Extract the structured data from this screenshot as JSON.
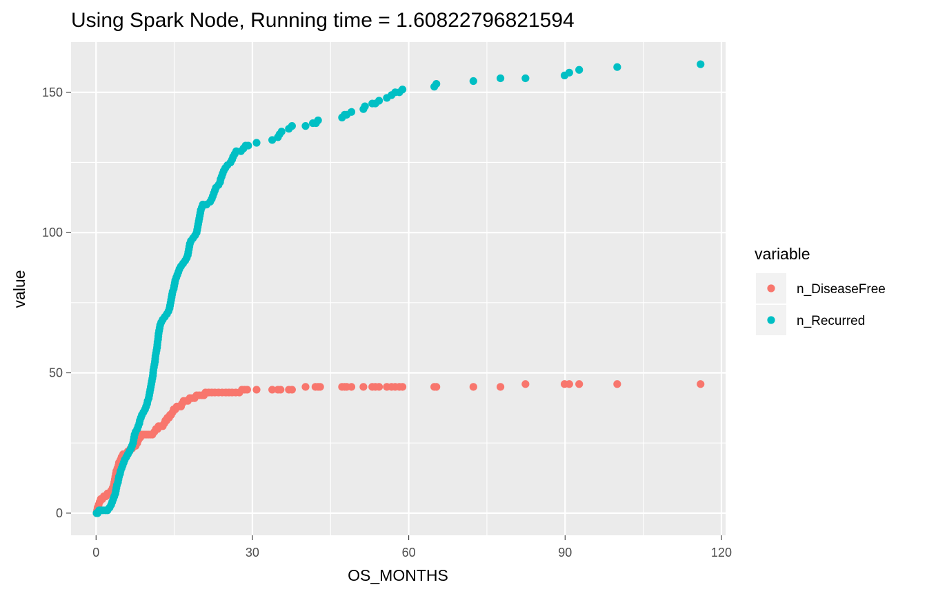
{
  "chart_data": {
    "type": "scatter",
    "title": "Using Spark Node, Running time =  1.60822796821594",
    "xlabel": "OS_MONTHS",
    "ylabel": "value",
    "xlim": [
      -4.8,
      120.8
    ],
    "ylim": [
      -7.9,
      167.9
    ],
    "x_ticks": [
      0,
      30,
      60,
      90,
      120
    ],
    "x_tick_labels": [
      "0",
      "30",
      "60",
      "90",
      "120"
    ],
    "y_ticks": [
      0,
      50,
      100,
      150
    ],
    "y_tick_labels": [
      "0",
      "50",
      "100",
      "150"
    ],
    "grid": true,
    "legend": {
      "title": "variable",
      "position": "right",
      "entries": [
        "n_DiseaseFree",
        "n_Recurred"
      ]
    },
    "series": [
      {
        "name": "n_DiseaseFree",
        "color": "#F8766D",
        "points": [
          [
            0.1,
            0
          ],
          [
            0.2,
            1
          ],
          [
            0.3,
            2
          ],
          [
            0.5,
            3
          ],
          [
            0.7,
            4
          ],
          [
            0.9,
            5
          ],
          [
            1.2,
            5
          ],
          [
            1.5,
            6
          ],
          [
            1.9,
            6
          ],
          [
            2.2,
            7
          ],
          [
            2.6,
            7
          ],
          [
            2.9,
            8
          ],
          [
            3.2,
            9
          ],
          [
            3.4,
            10
          ],
          [
            3.5,
            11
          ],
          [
            3.6,
            12
          ],
          [
            3.7,
            13
          ],
          [
            3.8,
            14
          ],
          [
            3.9,
            15
          ],
          [
            4.0,
            15
          ],
          [
            4.1,
            16
          ],
          [
            4.2,
            16
          ],
          [
            4.3,
            17
          ],
          [
            4.4,
            18
          ],
          [
            4.6,
            18
          ],
          [
            4.7,
            19
          ],
          [
            4.8,
            19
          ],
          [
            4.9,
            20
          ],
          [
            5.1,
            20
          ],
          [
            5.2,
            21
          ],
          [
            5.6,
            21
          ],
          [
            6.0,
            21
          ],
          [
            6.1,
            22
          ],
          [
            6.4,
            22
          ],
          [
            6.6,
            23
          ],
          [
            6.9,
            23
          ],
          [
            7.2,
            24
          ],
          [
            7.6,
            24
          ],
          [
            7.9,
            25
          ],
          [
            8.1,
            26
          ],
          [
            8.3,
            27
          ],
          [
            8.5,
            27
          ],
          [
            8.8,
            28
          ],
          [
            9.2,
            28
          ],
          [
            9.6,
            28
          ],
          [
            10.0,
            28
          ],
          [
            10.4,
            28
          ],
          [
            10.8,
            28
          ],
          [
            11.2,
            29
          ],
          [
            11.5,
            30
          ],
          [
            11.8,
            30
          ],
          [
            12.0,
            31
          ],
          [
            12.4,
            31
          ],
          [
            12.8,
            31
          ],
          [
            13.1,
            32
          ],
          [
            13.3,
            33
          ],
          [
            13.5,
            33
          ],
          [
            13.7,
            34
          ],
          [
            14.0,
            34
          ],
          [
            14.2,
            35
          ],
          [
            14.4,
            35
          ],
          [
            14.7,
            36
          ],
          [
            14.9,
            37
          ],
          [
            15.2,
            37
          ],
          [
            15.5,
            38
          ],
          [
            15.9,
            38
          ],
          [
            16.3,
            38
          ],
          [
            16.5,
            39
          ],
          [
            16.8,
            40
          ],
          [
            17.2,
            40
          ],
          [
            17.6,
            40
          ],
          [
            18.0,
            41
          ],
          [
            18.5,
            41
          ],
          [
            18.9,
            41
          ],
          [
            19.3,
            42
          ],
          [
            19.8,
            42
          ],
          [
            20.3,
            42
          ],
          [
            20.7,
            42
          ],
          [
            21.0,
            43
          ],
          [
            21.6,
            43
          ],
          [
            22.2,
            43
          ],
          [
            22.8,
            43
          ],
          [
            23.5,
            43
          ],
          [
            24.2,
            43
          ],
          [
            24.9,
            43
          ],
          [
            25.5,
            43
          ],
          [
            26.1,
            43
          ],
          [
            26.8,
            43
          ],
          [
            27.5,
            43
          ],
          [
            28.0,
            44
          ],
          [
            28.5,
            44
          ],
          [
            29.0,
            44
          ],
          [
            30.8,
            44
          ],
          [
            33.8,
            44
          ],
          [
            34.9,
            44
          ],
          [
            35.4,
            44
          ],
          [
            37.0,
            44
          ],
          [
            37.6,
            44
          ],
          [
            40.2,
            45
          ],
          [
            42.1,
            45
          ],
          [
            42.6,
            45
          ],
          [
            43.0,
            45
          ],
          [
            47.2,
            45
          ],
          [
            47.7,
            45
          ],
          [
            48.1,
            45
          ],
          [
            49.0,
            45
          ],
          [
            51.3,
            45
          ],
          [
            53.0,
            45
          ],
          [
            53.6,
            45
          ],
          [
            54.3,
            45
          ],
          [
            55.8,
            45
          ],
          [
            56.7,
            45
          ],
          [
            57.4,
            45
          ],
          [
            58.2,
            45
          ],
          [
            58.8,
            45
          ],
          [
            64.9,
            45
          ],
          [
            65.3,
            45
          ],
          [
            72.4,
            45
          ],
          [
            77.6,
            45
          ],
          [
            82.4,
            46
          ],
          [
            89.9,
            46
          ],
          [
            90.8,
            46
          ],
          [
            92.7,
            46
          ],
          [
            100.0,
            46
          ],
          [
            116.0,
            46
          ]
        ]
      },
      {
        "name": "n_Recurred",
        "color": "#00BFC4",
        "points": [
          [
            0.1,
            0
          ],
          [
            0.3,
            0
          ],
          [
            0.6,
            1
          ],
          [
            0.9,
            1
          ],
          [
            1.3,
            1
          ],
          [
            1.8,
            1
          ],
          [
            2.2,
            1
          ],
          [
            2.6,
            2
          ],
          [
            2.9,
            3
          ],
          [
            3.1,
            4
          ],
          [
            3.3,
            5
          ],
          [
            3.5,
            6
          ],
          [
            3.7,
            7
          ],
          [
            3.8,
            8
          ],
          [
            3.9,
            9
          ],
          [
            4.0,
            10
          ],
          [
            4.2,
            11
          ],
          [
            4.3,
            12
          ],
          [
            4.4,
            13
          ],
          [
            4.6,
            14
          ],
          [
            4.7,
            15
          ],
          [
            4.9,
            16
          ],
          [
            5.1,
            17
          ],
          [
            5.3,
            18
          ],
          [
            5.5,
            19
          ],
          [
            5.8,
            20
          ],
          [
            6.1,
            21
          ],
          [
            6.4,
            22
          ],
          [
            6.7,
            23
          ],
          [
            6.9,
            24
          ],
          [
            7.1,
            25
          ],
          [
            7.2,
            26
          ],
          [
            7.3,
            27
          ],
          [
            7.4,
            28
          ],
          [
            7.6,
            29
          ],
          [
            7.9,
            30
          ],
          [
            8.1,
            31
          ],
          [
            8.3,
            32
          ],
          [
            8.4,
            33
          ],
          [
            8.6,
            34
          ],
          [
            8.8,
            35
          ],
          [
            9.1,
            36
          ],
          [
            9.4,
            37
          ],
          [
            9.6,
            38
          ],
          [
            9.8,
            39
          ],
          [
            9.9,
            40
          ],
          [
            10.1,
            41
          ],
          [
            10.2,
            42
          ],
          [
            10.3,
            43
          ],
          [
            10.4,
            44
          ],
          [
            10.5,
            45
          ],
          [
            10.6,
            46
          ],
          [
            10.7,
            47
          ],
          [
            10.8,
            48
          ],
          [
            10.9,
            49
          ],
          [
            10.95,
            50
          ],
          [
            11.0,
            51
          ],
          [
            11.1,
            52
          ],
          [
            11.2,
            53
          ],
          [
            11.3,
            54
          ],
          [
            11.35,
            55
          ],
          [
            11.4,
            56
          ],
          [
            11.5,
            57
          ],
          [
            11.6,
            58
          ],
          [
            11.7,
            59
          ],
          [
            11.75,
            60
          ],
          [
            11.8,
            61
          ],
          [
            11.9,
            62
          ],
          [
            11.95,
            63
          ],
          [
            12.0,
            64
          ],
          [
            12.1,
            65
          ],
          [
            12.2,
            66
          ],
          [
            12.3,
            67
          ],
          [
            12.5,
            68
          ],
          [
            12.8,
            69
          ],
          [
            13.2,
            70
          ],
          [
            13.6,
            71
          ],
          [
            13.9,
            72
          ],
          [
            14.1,
            73
          ],
          [
            14.2,
            74
          ],
          [
            14.3,
            75
          ],
          [
            14.4,
            76
          ],
          [
            14.5,
            77
          ],
          [
            14.6,
            78
          ],
          [
            14.7,
            79
          ],
          [
            14.9,
            80
          ],
          [
            15.0,
            81
          ],
          [
            15.1,
            82
          ],
          [
            15.2,
            83
          ],
          [
            15.4,
            84
          ],
          [
            15.6,
            85
          ],
          [
            15.8,
            86
          ],
          [
            16.0,
            87
          ],
          [
            16.3,
            88
          ],
          [
            16.7,
            89
          ],
          [
            17.1,
            90
          ],
          [
            17.4,
            91
          ],
          [
            17.6,
            92
          ],
          [
            17.7,
            93
          ],
          [
            17.8,
            94
          ],
          [
            17.9,
            95
          ],
          [
            18.0,
            96
          ],
          [
            18.2,
            97
          ],
          [
            18.6,
            98
          ],
          [
            19.0,
            99
          ],
          [
            19.3,
            100
          ],
          [
            19.4,
            101
          ],
          [
            19.5,
            102
          ],
          [
            19.6,
            103
          ],
          [
            19.7,
            104
          ],
          [
            19.8,
            105
          ],
          [
            19.9,
            106
          ],
          [
            20.0,
            107
          ],
          [
            20.1,
            108
          ],
          [
            20.3,
            109
          ],
          [
            20.5,
            110
          ],
          [
            21.2,
            110
          ],
          [
            21.9,
            111
          ],
          [
            22.2,
            112
          ],
          [
            22.4,
            113
          ],
          [
            22.6,
            114
          ],
          [
            22.8,
            115
          ],
          [
            23.0,
            116
          ],
          [
            23.5,
            117
          ],
          [
            23.8,
            118
          ],
          [
            23.9,
            119
          ],
          [
            24.1,
            120
          ],
          [
            24.3,
            121
          ],
          [
            24.5,
            122
          ],
          [
            24.8,
            123
          ],
          [
            25.2,
            124
          ],
          [
            25.8,
            125
          ],
          [
            26.1,
            126
          ],
          [
            26.3,
            127
          ],
          [
            26.6,
            128
          ],
          [
            26.9,
            129
          ],
          [
            27.8,
            129
          ],
          [
            28.3,
            130
          ],
          [
            28.7,
            131
          ],
          [
            29.2,
            131
          ],
          [
            30.8,
            132
          ],
          [
            33.8,
            133
          ],
          [
            34.9,
            134
          ],
          [
            35.2,
            135
          ],
          [
            35.6,
            136
          ],
          [
            37.0,
            137
          ],
          [
            37.6,
            138
          ],
          [
            40.2,
            138
          ],
          [
            41.6,
            139
          ],
          [
            42.2,
            139
          ],
          [
            42.6,
            140
          ],
          [
            47.2,
            141
          ],
          [
            47.7,
            142
          ],
          [
            48.1,
            142
          ],
          [
            49.0,
            143
          ],
          [
            51.3,
            144
          ],
          [
            51.6,
            145
          ],
          [
            53.0,
            146
          ],
          [
            53.6,
            146
          ],
          [
            54.3,
            147
          ],
          [
            55.8,
            148
          ],
          [
            56.7,
            149
          ],
          [
            57.4,
            150
          ],
          [
            58.2,
            150
          ],
          [
            58.8,
            151
          ],
          [
            64.9,
            152
          ],
          [
            65.3,
            153
          ],
          [
            72.4,
            154
          ],
          [
            77.6,
            155
          ],
          [
            82.4,
            155
          ],
          [
            89.9,
            156
          ],
          [
            90.8,
            157
          ],
          [
            92.7,
            158
          ],
          [
            100.0,
            159
          ],
          [
            116.0,
            160
          ]
        ]
      }
    ]
  }
}
